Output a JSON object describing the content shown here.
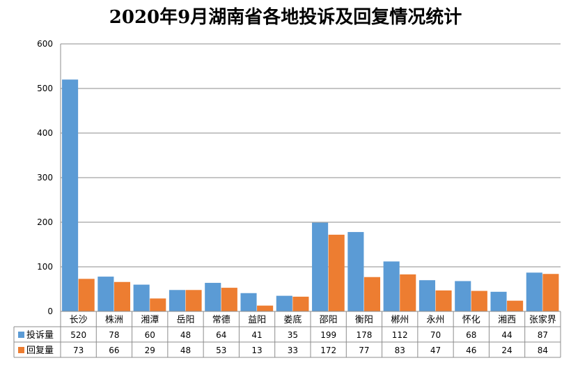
{
  "chart_data": {
    "type": "bar",
    "title": "2020年9月湖南省各地投诉及回复情况统计",
    "categories": [
      "长沙",
      "株洲",
      "湘潭",
      "岳阳",
      "常德",
      "益阳",
      "娄底",
      "邵阳",
      "衡阳",
      "郴州",
      "永州",
      "怀化",
      "湘西",
      "张家界"
    ],
    "series": [
      {
        "name": "投诉量",
        "values": [
          520,
          78,
          60,
          48,
          64,
          41,
          35,
          199,
          178,
          112,
          70,
          68,
          44,
          87
        ],
        "color": "#5B9BD5"
      },
      {
        "name": "回复量",
        "values": [
          73,
          66,
          29,
          48,
          53,
          13,
          33,
          172,
          77,
          83,
          47,
          46,
          24,
          84
        ],
        "color": "#ED7D31"
      }
    ],
    "ylim": [
      0,
      600
    ],
    "yticks": [
      0,
      100,
      200,
      300,
      400,
      500,
      600
    ],
    "grid": true,
    "legend": "data-table"
  }
}
